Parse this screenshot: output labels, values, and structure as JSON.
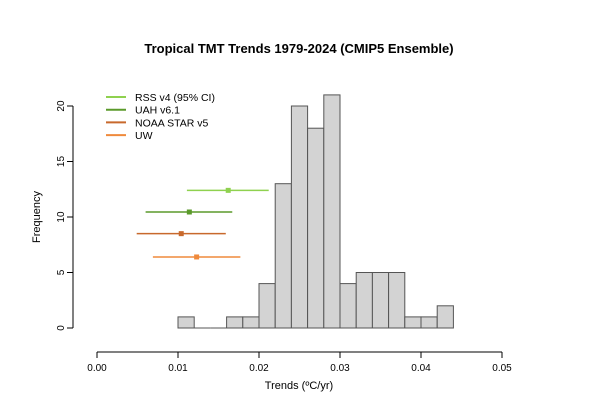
{
  "chart_data": {
    "type": "bar",
    "title": "Tropical TMT Trends 1979-2024 (CMIP5 Ensemble)",
    "xlabel": "Trends (ºC/yr)",
    "ylabel": "Frequency",
    "xlim": [
      0,
      0.05
    ],
    "ylim": [
      0,
      21
    ],
    "xticks": [
      "0.00",
      "0.01",
      "0.02",
      "0.03",
      "0.04",
      "0.05"
    ],
    "xtick_values": [
      0,
      0.01,
      0.02,
      0.03,
      0.04,
      0.05
    ],
    "yticks": [
      "0",
      "5",
      "10",
      "15",
      "20"
    ],
    "ytick_values": [
      0,
      5,
      10,
      15,
      20
    ],
    "bin_width": 0.002,
    "bin_starts": [
      0.01,
      0.012,
      0.014,
      0.016,
      0.018,
      0.02,
      0.022,
      0.024,
      0.026,
      0.028,
      0.03,
      0.032,
      0.034,
      0.036,
      0.038,
      0.04,
      0.042
    ],
    "values": [
      1,
      0,
      0,
      1,
      1,
      4,
      13,
      20,
      18,
      21,
      4,
      5,
      5,
      5,
      1,
      1,
      2
    ],
    "bar_color": "#d3d3d3",
    "legend_position": "top-left",
    "observations": [
      {
        "name": "RSS v4 (95% CI)",
        "color": "#8fd14f",
        "y": 12.4,
        "center": 0.0162,
        "low": 0.0111,
        "high": 0.0212
      },
      {
        "name": "UAH v6.1",
        "color": "#5b9a2b",
        "y": 10.45,
        "center": 0.0114,
        "low": 0.006,
        "high": 0.0167
      },
      {
        "name": "NOAA STAR v5",
        "color": "#c8692c",
        "y": 8.5,
        "center": 0.0104,
        "low": 0.0049,
        "high": 0.0159
      },
      {
        "name": "UW",
        "color": "#ef8a3c",
        "y": 6.4,
        "center": 0.0123,
        "low": 0.0069,
        "high": 0.0177
      }
    ]
  }
}
